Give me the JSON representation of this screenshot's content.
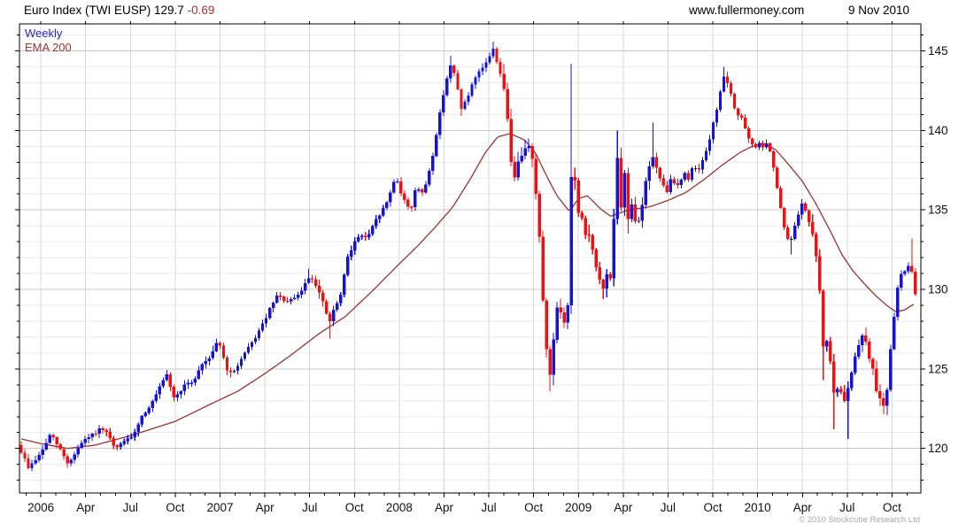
{
  "header": {
    "title": "Euro Index (TWI EUSP) 129.7 ",
    "change": "-0.69",
    "website": "www.fullermoney.com",
    "date": "9 Nov 2010"
  },
  "legend": {
    "series1": "Weekly",
    "series2": "EMA 200"
  },
  "footer": {
    "copyright": "© 2010 Stockcube Research Ltd"
  },
  "colors": {
    "up": "#1414d2",
    "down": "#ee1111",
    "ema": "#993333",
    "change_negative": "#aa3030",
    "legend_weekly": "#2222cc",
    "grid_minor": "#ebebeb",
    "grid_major": "#c9c9c9",
    "grid_vertical": "#d8d8d8",
    "axis": "#000000",
    "label": "#111111",
    "copyright": "#a8a8a8"
  },
  "chart_data": {
    "type": "candlestick",
    "instrument": "Euro Index (TWI EUSP)",
    "frequency": "Weekly",
    "overlay": "EMA 200",
    "last_close": 129.7,
    "change": -0.69,
    "x_domain_years": [
      2005.881,
      2010.911
    ],
    "y_domain": [
      117.2,
      146.7
    ],
    "y_ticks": [
      120,
      125,
      130,
      135,
      140,
      145
    ],
    "y_minor_step": 1,
    "x_tick_labels": [
      "2006",
      "Apr",
      "Jul",
      "Oct",
      "2007",
      "Apr",
      "Jul",
      "Oct",
      "2008",
      "Apr",
      "Jul",
      "Oct",
      "2009",
      "Apr",
      "Jul",
      "Oct",
      "2010",
      "Apr",
      "Jul",
      "Oct"
    ],
    "x_tick_start_year": 2006,
    "x_tick_step_years": 0.25,
    "grid": true,
    "weekly_close_waypoints": [
      [
        2005.891,
        119.8
      ],
      [
        2005.931,
        118.8
      ],
      [
        2005.995,
        119.6
      ],
      [
        2006.054,
        120.9
      ],
      [
        2006.109,
        119.9
      ],
      [
        2006.153,
        119.0
      ],
      [
        2006.217,
        120.2
      ],
      [
        2006.267,
        120.7
      ],
      [
        2006.331,
        121.2
      ],
      [
        2006.375,
        120.9
      ],
      [
        2006.415,
        119.9
      ],
      [
        2006.464,
        120.5
      ],
      [
        2006.504,
        120.6
      ],
      [
        2006.563,
        122.0
      ],
      [
        2006.623,
        122.9
      ],
      [
        2006.662,
        123.8
      ],
      [
        2006.702,
        124.6
      ],
      [
        2006.746,
        123.1
      ],
      [
        2006.795,
        123.9
      ],
      [
        2006.85,
        124.2
      ],
      [
        2006.894,
        125.2
      ],
      [
        2006.944,
        125.8
      ],
      [
        2006.993,
        126.9
      ],
      [
        2007.032,
        125.0
      ],
      [
        2007.067,
        124.6
      ],
      [
        2007.117,
        125.6
      ],
      [
        2007.171,
        126.5
      ],
      [
        2007.23,
        127.6
      ],
      [
        2007.28,
        128.8
      ],
      [
        2007.319,
        129.6
      ],
      [
        2007.379,
        129.2
      ],
      [
        2007.413,
        129.4
      ],
      [
        2007.443,
        129.7
      ],
      [
        2007.472,
        130.3
      ],
      [
        2007.502,
        130.9
      ],
      [
        2007.541,
        130.2
      ],
      [
        2007.581,
        128.9
      ],
      [
        2007.611,
        127.9
      ],
      [
        2007.64,
        128.8
      ],
      [
        2007.68,
        129.8
      ],
      [
        2007.709,
        132.0
      ],
      [
        2007.749,
        133.0
      ],
      [
        2007.789,
        133.4
      ],
      [
        2007.823,
        133.2
      ],
      [
        2007.863,
        134.2
      ],
      [
        2007.897,
        134.8
      ],
      [
        2007.937,
        135.6
      ],
      [
        2007.981,
        137.2
      ],
      [
        2008.006,
        136.2
      ],
      [
        2008.036,
        135.4
      ],
      [
        2008.065,
        135.0
      ],
      [
        2008.095,
        136.6
      ],
      [
        2008.125,
        135.9
      ],
      [
        2008.154,
        136.8
      ],
      [
        2008.184,
        138.2
      ],
      [
        2008.213,
        140.1
      ],
      [
        2008.243,
        142.1
      ],
      [
        2008.273,
        143.6
      ],
      [
        2008.292,
        144.2
      ],
      [
        2008.317,
        143.1
      ],
      [
        2008.347,
        141.4
      ],
      [
        2008.376,
        141.9
      ],
      [
        2008.406,
        142.8
      ],
      [
        2008.436,
        143.5
      ],
      [
        2008.465,
        143.9
      ],
      [
        2008.495,
        144.5
      ],
      [
        2008.525,
        145.1
      ],
      [
        2008.549,
        144.2
      ],
      [
        2008.574,
        143.3
      ],
      [
        2008.599,
        141.2
      ],
      [
        2008.623,
        138.1
      ],
      [
        2008.643,
        137.2
      ],
      [
        2008.668,
        138.0
      ],
      [
        2008.693,
        139.0
      ],
      [
        2008.722,
        139.3
      ],
      [
        2008.747,
        137.8
      ],
      [
        2008.772,
        135.0
      ],
      [
        2008.796,
        130.5
      ],
      [
        2008.821,
        126.3
      ],
      [
        2008.841,
        124.5
      ],
      [
        2008.861,
        127.0
      ],
      [
        2008.881,
        128.8
      ],
      [
        2008.905,
        128.3
      ],
      [
        2008.925,
        127.9
      ],
      [
        2008.945,
        129.3
      ],
      [
        2008.964,
        139.0
      ],
      [
        2008.994,
        134.8
      ],
      [
        2009.019,
        134.3
      ],
      [
        2009.043,
        133.2
      ],
      [
        2009.068,
        133.6
      ],
      [
        2009.093,
        131.5
      ],
      [
        2009.117,
        130.5
      ],
      [
        2009.142,
        130.0
      ],
      [
        2009.167,
        131.3
      ],
      [
        2009.187,
        130.6
      ],
      [
        2009.211,
        139.2
      ],
      [
        2009.236,
        134.8
      ],
      [
        2009.256,
        137.3
      ],
      [
        2009.281,
        134.0
      ],
      [
        2009.3,
        135.8
      ],
      [
        2009.325,
        133.8
      ],
      [
        2009.345,
        134.8
      ],
      [
        2009.37,
        136.3
      ],
      [
        2009.394,
        137.8
      ],
      [
        2009.419,
        138.4
      ],
      [
        2009.444,
        137.2
      ],
      [
        2009.468,
        136.6
      ],
      [
        2009.493,
        136.1
      ],
      [
        2009.518,
        137.0
      ],
      [
        2009.543,
        136.5
      ],
      [
        2009.567,
        136.8
      ],
      [
        2009.592,
        137.3
      ],
      [
        2009.617,
        136.9
      ],
      [
        2009.641,
        137.9
      ],
      [
        2009.666,
        137.5
      ],
      [
        2009.691,
        138.0
      ],
      [
        2009.715,
        138.7
      ],
      [
        2009.74,
        139.8
      ],
      [
        2009.765,
        141.0
      ],
      [
        2009.79,
        142.4
      ],
      [
        2009.814,
        143.4
      ],
      [
        2009.839,
        142.8
      ],
      [
        2009.864,
        141.6
      ],
      [
        2009.888,
        141.0
      ],
      [
        2009.913,
        140.8
      ],
      [
        2009.938,
        139.8
      ],
      [
        2009.963,
        139.1
      ],
      [
        2009.988,
        138.9
      ],
      [
        2010.012,
        139.3
      ],
      [
        2010.037,
        138.7
      ],
      [
        2010.057,
        139.4
      ],
      [
        2010.081,
        138.0
      ],
      [
        2010.106,
        136.6
      ],
      [
        2010.131,
        134.9
      ],
      [
        2010.156,
        133.4
      ],
      [
        2010.18,
        132.9
      ],
      [
        2010.205,
        133.8
      ],
      [
        2010.23,
        134.9
      ],
      [
        2010.255,
        135.5
      ],
      [
        2010.279,
        134.5
      ],
      [
        2010.304,
        133.6
      ],
      [
        2010.324,
        132.2
      ],
      [
        2010.344,
        130.3
      ],
      [
        2010.358,
        127.8
      ],
      [
        2010.373,
        125.5
      ],
      [
        2010.393,
        127.2
      ],
      [
        2010.417,
        123.9
      ],
      [
        2010.437,
        123.3
      ],
      [
        2010.457,
        123.9
      ],
      [
        2010.477,
        123.0
      ],
      [
        2010.496,
        123.4
      ],
      [
        2010.521,
        124.6
      ],
      [
        2010.546,
        126.0
      ],
      [
        2010.57,
        126.9
      ],
      [
        2010.595,
        127.2
      ],
      [
        2010.62,
        126.0
      ],
      [
        2010.644,
        124.8
      ],
      [
        2010.669,
        123.5
      ],
      [
        2010.694,
        122.9
      ],
      [
        2010.713,
        122.7
      ],
      [
        2010.733,
        125.0
      ],
      [
        2010.758,
        127.8
      ],
      [
        2010.778,
        129.9
      ],
      [
        2010.802,
        131.0
      ],
      [
        2010.827,
        131.2
      ],
      [
        2010.852,
        131.8
      ],
      [
        2010.881,
        129.7
      ]
    ],
    "extreme_wicks": [
      [
        2007.502,
        "hi",
        131.3
      ],
      [
        2007.611,
        "lo",
        126.9
      ],
      [
        2008.292,
        "hi",
        144.7
      ],
      [
        2008.347,
        "lo",
        140.9
      ],
      [
        2008.525,
        "hi",
        145.6
      ],
      [
        2008.643,
        "lo",
        136.8
      ],
      [
        2008.841,
        "lo",
        123.6
      ],
      [
        2008.964,
        "hi",
        144.2
      ],
      [
        2009.142,
        "lo",
        129.4
      ],
      [
        2009.211,
        "hi",
        140.0
      ],
      [
        2009.281,
        "lo",
        133.5
      ],
      [
        2009.419,
        "hi",
        140.5
      ],
      [
        2009.814,
        "hi",
        144.0
      ],
      [
        2010.18,
        "lo",
        132.2
      ],
      [
        2010.373,
        "lo",
        124.3
      ],
      [
        2010.417,
        "lo",
        121.2
      ],
      [
        2010.496,
        "lo",
        120.6
      ],
      [
        2010.595,
        "hi",
        127.6
      ],
      [
        2010.713,
        "lo",
        122.1
      ],
      [
        2010.852,
        "hi",
        133.2
      ]
    ],
    "ema_waypoints": [
      [
        2005.891,
        120.6
      ],
      [
        2006.0,
        120.3
      ],
      [
        2006.15,
        120.0
      ],
      [
        2006.3,
        120.2
      ],
      [
        2006.5,
        120.8
      ],
      [
        2006.75,
        121.7
      ],
      [
        2006.95,
        122.8
      ],
      [
        2007.1,
        123.6
      ],
      [
        2007.25,
        124.7
      ],
      [
        2007.4,
        125.9
      ],
      [
        2007.55,
        127.2
      ],
      [
        2007.7,
        128.3
      ],
      [
        2007.85,
        129.9
      ],
      [
        2008.0,
        131.6
      ],
      [
        2008.1,
        132.7
      ],
      [
        2008.2,
        133.9
      ],
      [
        2008.3,
        135.2
      ],
      [
        2008.4,
        137.0
      ],
      [
        2008.48,
        138.6
      ],
      [
        2008.55,
        139.6
      ],
      [
        2008.62,
        139.8
      ],
      [
        2008.7,
        139.4
      ],
      [
        2008.76,
        138.6
      ],
      [
        2008.82,
        137.2
      ],
      [
        2008.88,
        135.9
      ],
      [
        2008.95,
        134.9
      ],
      [
        2009.0,
        135.7
      ],
      [
        2009.05,
        135.9
      ],
      [
        2009.12,
        135.1
      ],
      [
        2009.18,
        134.6
      ],
      [
        2009.28,
        135.0
      ],
      [
        2009.4,
        135.2
      ],
      [
        2009.5,
        135.6
      ],
      [
        2009.6,
        136.1
      ],
      [
        2009.7,
        136.9
      ],
      [
        2009.8,
        137.8
      ],
      [
        2009.9,
        138.6
      ],
      [
        2009.97,
        139.0
      ],
      [
        2010.03,
        139.2
      ],
      [
        2010.1,
        138.8
      ],
      [
        2010.17,
        137.9
      ],
      [
        2010.25,
        136.8
      ],
      [
        2010.32,
        135.5
      ],
      [
        2010.4,
        133.8
      ],
      [
        2010.47,
        132.2
      ],
      [
        2010.53,
        131.2
      ],
      [
        2010.6,
        130.3
      ],
      [
        2010.66,
        129.6
      ],
      [
        2010.72,
        129.0
      ],
      [
        2010.77,
        128.6
      ],
      [
        2010.82,
        128.7
      ],
      [
        2010.86,
        129.0
      ],
      [
        2010.881,
        129.1
      ]
    ]
  }
}
